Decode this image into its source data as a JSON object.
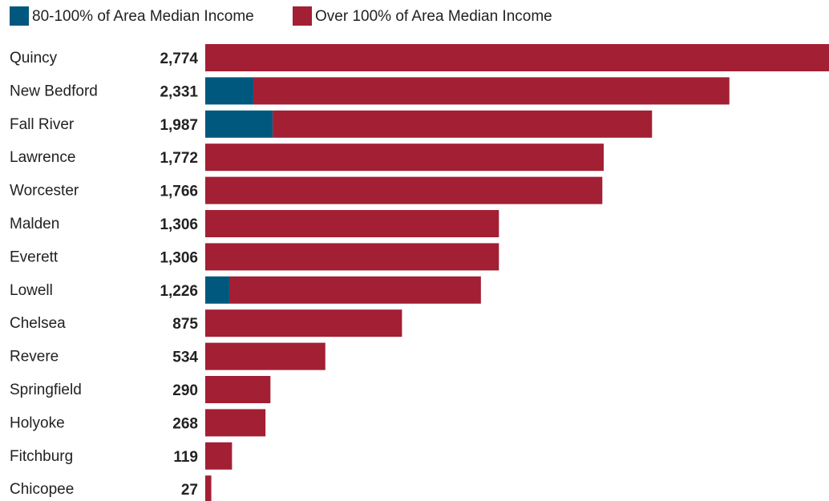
{
  "chart_data": {
    "type": "stacked-bar-horizontal",
    "categories": [
      "Quincy",
      "New Bedford",
      "Fall River",
      "Lawrence",
      "Worcester",
      "Malden",
      "Everett",
      "Lowell",
      "Chelsea",
      "Revere",
      "Springfield",
      "Holyoke",
      "Fitchburg",
      "Chicopee"
    ],
    "series": [
      {
        "name": "80-100% of Area Median Income",
        "color": "#00587f",
        "values": [
          0,
          214,
          300,
          0,
          0,
          0,
          0,
          107,
          0,
          0,
          0,
          0,
          0,
          0
        ]
      },
      {
        "name": "Over 100% of Area Median Income",
        "color": "#a31f34",
        "values": [
          2774,
          2117,
          1687,
          1772,
          1766,
          1306,
          1306,
          1119,
          875,
          534,
          290,
          268,
          119,
          27
        ]
      }
    ],
    "total_labels": [
      "2,774",
      "2,331",
      "1,987",
      "1,772",
      "1,766",
      "1,306",
      "1,306",
      "1,226",
      "875",
      "534",
      "290",
      "268",
      "119",
      "27"
    ],
    "xlim": [
      0,
      2774
    ]
  }
}
